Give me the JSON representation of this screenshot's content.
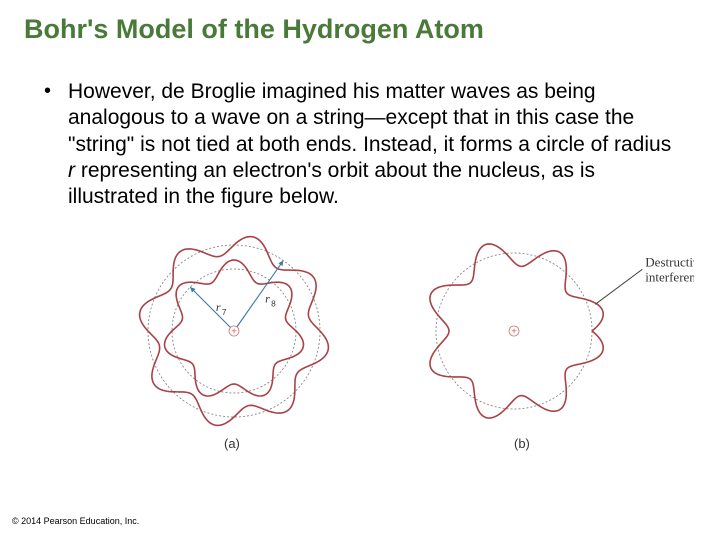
{
  "title": {
    "text": "Bohr's Model of the Hydrogen Atom",
    "color": "#4a7a3a",
    "fontsize": 27
  },
  "bullet": {
    "marker": "•",
    "text_before_r": "However, de Broglie imagined his matter waves as being analogous to a wave on a string—except that in this case the \"string\" is not tied at both ends. Instead, it forms a circle of radius ",
    "r": "r",
    "text_after_r": " representing an electron's orbit about the nucleus, as is illustrated in the figure below.",
    "fontsize": 21
  },
  "figure_a": {
    "type": "diagram",
    "caption": "(a)",
    "nucleus_symbol": "+",
    "nucleus_color": "#d96c55",
    "inner_circle": {
      "r": 62,
      "stroke": "#888888",
      "width": 0.9,
      "dash": "2 2"
    },
    "outer_circle": {
      "r": 86,
      "stroke": "#888888",
      "width": 0.9,
      "dash": "2 2"
    },
    "wave_inner": {
      "periods": 7,
      "amplitude": 9,
      "base_r": 62,
      "stroke": "#a94247",
      "width": 1.6
    },
    "wave_outer": {
      "periods": 8,
      "amplitude": 10,
      "base_r": 86,
      "stroke": "#a94247",
      "width": 1.6
    },
    "radius_lines": {
      "stroke": "#3a7aa8",
      "width": 1.1,
      "arrow": true
    },
    "r7_angle_deg": 135,
    "r8_angle_deg": 55,
    "labels": {
      "r7": "r",
      "sub7": "7",
      "r8": "r",
      "sub8": "8",
      "color": "#333333",
      "fontsize": 12
    }
  },
  "figure_b": {
    "type": "diagram",
    "caption": "(b)",
    "nucleus_symbol": "+",
    "nucleus_color": "#d96c55",
    "guide_circle": {
      "r": 78,
      "stroke": "#888888",
      "width": 0.9,
      "dash": "2 2"
    },
    "wave": {
      "periods": 7.5,
      "amplitude": 13,
      "base_r": 78,
      "stroke": "#a94247",
      "width": 1.6
    },
    "annotation": {
      "text_line1": "Destructive",
      "text_line2": "interference",
      "color": "#333333",
      "fontsize": 13,
      "pointer_stroke": "#444444"
    }
  },
  "copyright": "© 2014 Pearson Education, Inc."
}
